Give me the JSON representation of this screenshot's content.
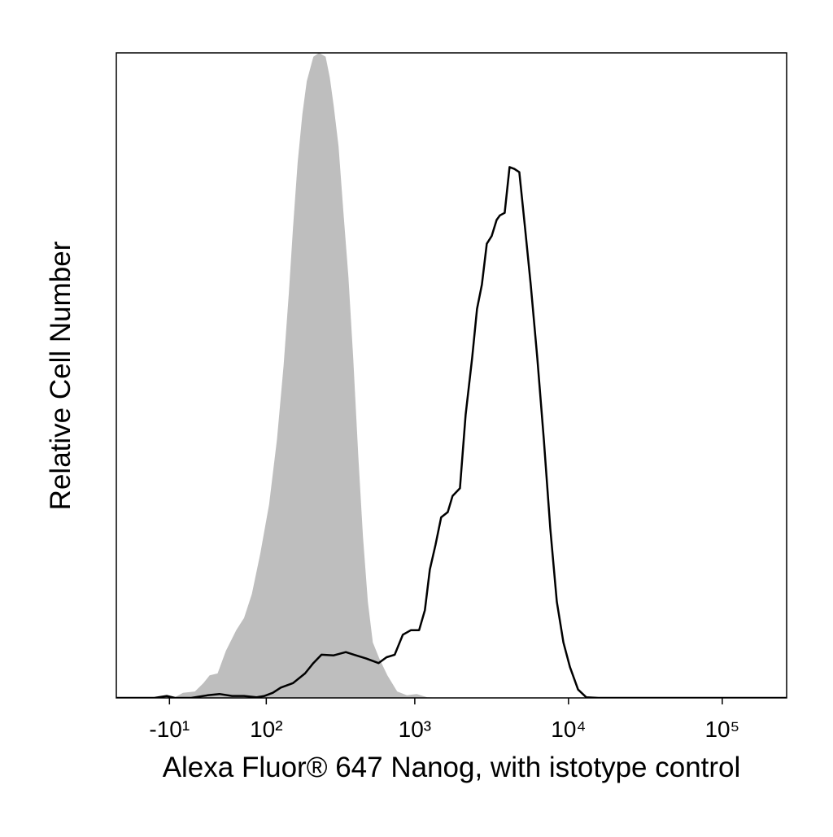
{
  "chart_data": {
    "type": "histogram-overlay",
    "xlabel": "Alexa Fluor® 647 Nanog, with istotype control",
    "ylabel": "Relative Cell Number",
    "xscale": "biexponential",
    "xlim": [
      -67,
      262144
    ],
    "ylim": [
      0,
      100
    ],
    "xticks": [
      {
        "value": -10,
        "label": "-10¹"
      },
      {
        "value": 100,
        "label": "10²"
      },
      {
        "value": 1000,
        "label": "10³"
      },
      {
        "value": 10000,
        "label": "10⁴"
      },
      {
        "value": 100000,
        "label": "10⁵"
      }
    ],
    "series": [
      {
        "color": "#bebebe",
        "fill": true,
        "x": [
          -67,
          -24,
          -16,
          -5,
          2.2,
          13,
          21,
          27,
          35,
          44,
          56,
          66,
          77,
          90,
          105,
          120,
          134,
          146,
          156,
          168,
          181,
          194,
          215,
          235,
          260,
          277,
          294,
          317,
          341,
          368,
          396,
          427,
          459,
          494,
          532,
          587,
          663,
          768,
          889,
          1030,
          1206,
          1540
        ],
        "values": [
          0,
          0,
          0.3,
          0.1,
          0.8,
          1.0,
          2.3,
          3.5,
          3.8,
          7.3,
          10.5,
          12.4,
          16.1,
          22.4,
          30.0,
          40.1,
          51.5,
          62.8,
          72.9,
          83.0,
          90.5,
          95.6,
          99.4,
          100,
          99.4,
          96.2,
          91.8,
          85.5,
          75.4,
          65.3,
          52.7,
          37.6,
          25.0,
          14.9,
          8.6,
          6.1,
          3.5,
          1.0,
          0.4,
          0.6,
          0.1,
          0
        ]
      },
      {
        "color": "#000000",
        "fill": false,
        "x": [
          -67,
          -24,
          -12.5,
          -5,
          9.6,
          24.8,
          37,
          51,
          66,
          84,
          97,
          112,
          128,
          156,
          189,
          215,
          244,
          294,
          354,
          401,
          482,
          580,
          655,
          740,
          836,
          944,
          1067,
          1164,
          1254,
          1363,
          1485,
          1638,
          1762,
          1968,
          2142,
          2363,
          2540,
          2734,
          2940,
          3166,
          3407,
          3578,
          3847,
          4139,
          4452,
          4789,
          5218,
          5681,
          6265,
          6908,
          7618,
          8399,
          9268,
          10212,
          11540,
          13040,
          15655,
          262144
        ],
        "values": [
          0,
          0,
          0.3,
          0,
          0,
          0.4,
          0.6,
          0.3,
          0.3,
          0.1,
          0.3,
          0.8,
          1.6,
          2.3,
          3.8,
          5.4,
          6.7,
          6.6,
          7.1,
          6.7,
          6.1,
          5.4,
          6.3,
          6.7,
          9.8,
          10.5,
          10.5,
          13.6,
          19.9,
          23.7,
          28.0,
          28.8,
          31.3,
          32.5,
          43.9,
          52.7,
          60.3,
          64.1,
          70.4,
          71.6,
          74.1,
          74.8,
          75.2,
          82.3,
          82.0,
          81.5,
          72.9,
          64.1,
          52.7,
          40.1,
          26.2,
          14.9,
          8.6,
          4.8,
          1.3,
          0.1,
          0,
          0
        ]
      }
    ]
  }
}
